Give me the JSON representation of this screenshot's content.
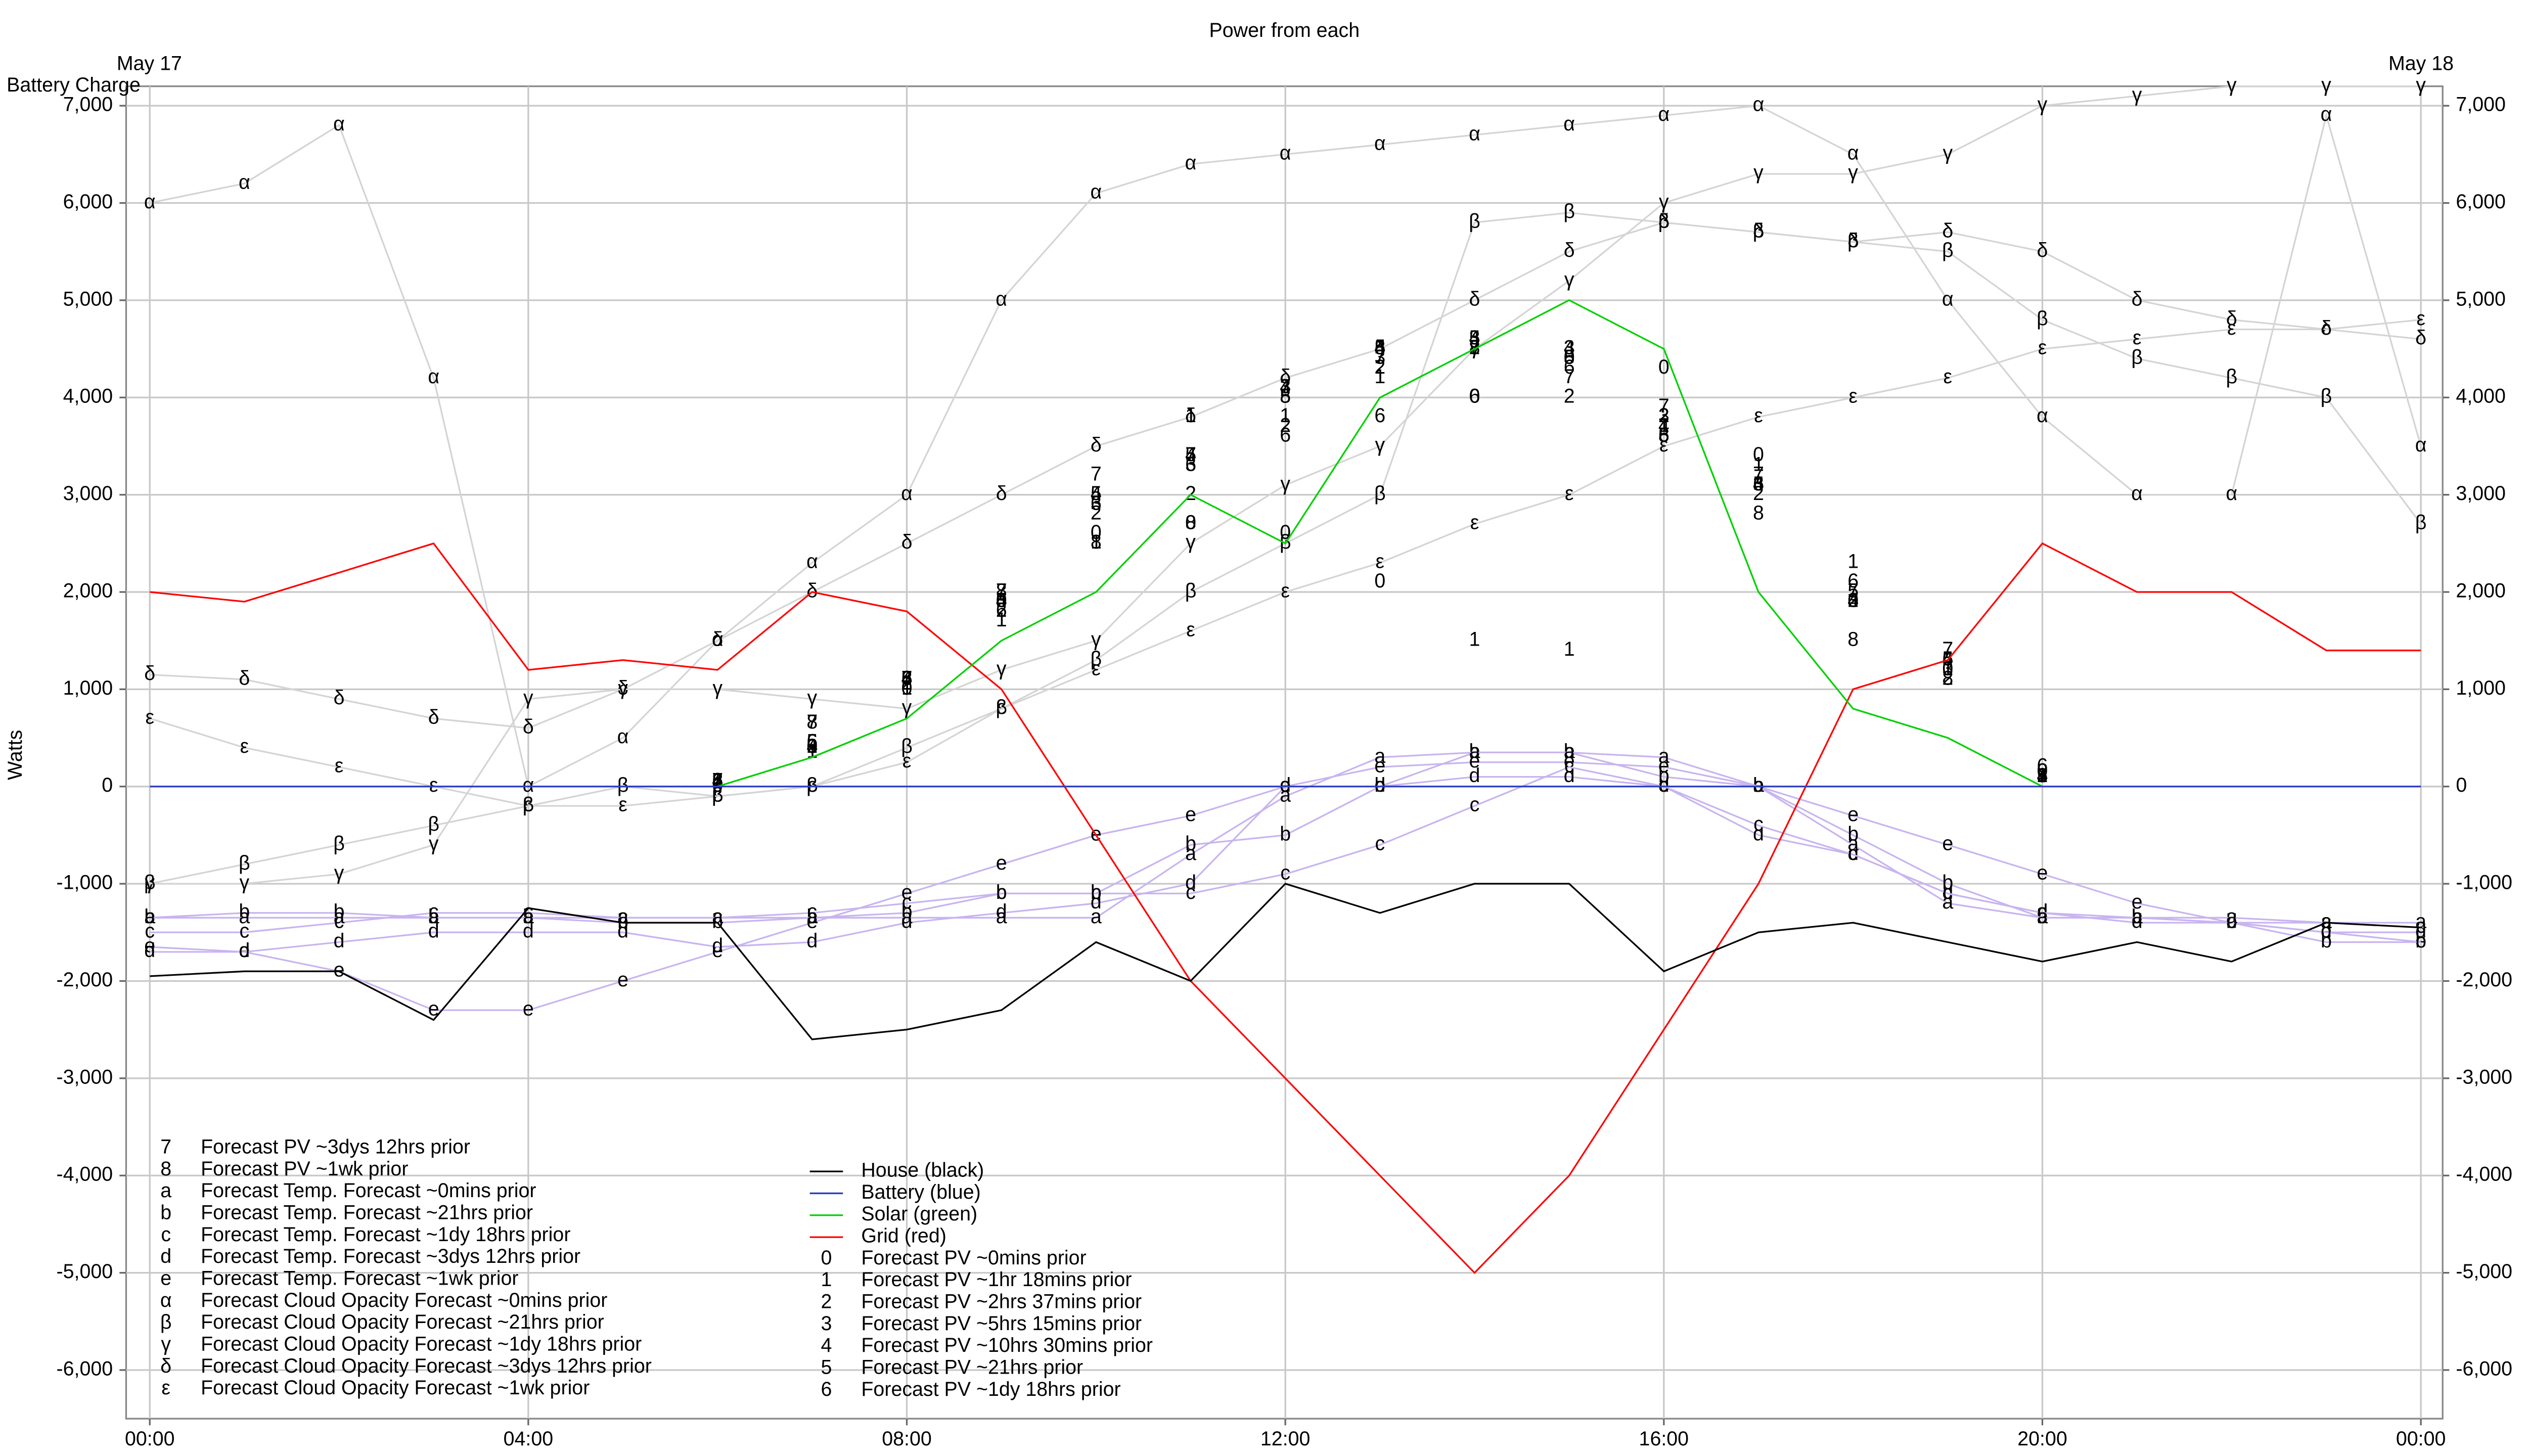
{
  "chart_data": {
    "type": "line",
    "title": "Power from each",
    "ylabel": "Watts",
    "y_top_label": "Battery Charge",
    "date_start": "May 17",
    "date_end": "May 18",
    "x": [
      0,
      1,
      2,
      3,
      4,
      5,
      6,
      7,
      8,
      9,
      10,
      11,
      12,
      13,
      14,
      15,
      16,
      17,
      18,
      19,
      20,
      21,
      22,
      23,
      24
    ],
    "xlim": [
      -0.25,
      24.23
    ],
    "xticks": [
      {
        "value": 0,
        "label": "00:00"
      },
      {
        "value": 4,
        "label": "04:00"
      },
      {
        "value": 8,
        "label": "08:00"
      },
      {
        "value": 12,
        "label": "12:00"
      },
      {
        "value": 16,
        "label": "16:00"
      },
      {
        "value": 20,
        "label": "20:00"
      },
      {
        "value": 24,
        "label": "00:00"
      }
    ],
    "ylim": [
      -6500,
      7200
    ],
    "yticks": [
      {
        "value": -6000,
        "label": "-6,000"
      },
      {
        "value": -5000,
        "label": "-5,000"
      },
      {
        "value": -4000,
        "label": "-4,000"
      },
      {
        "value": -3000,
        "label": "-3,000"
      },
      {
        "value": -2000,
        "label": "-2,000"
      },
      {
        "value": -1000,
        "label": "-1,000"
      },
      0,
      {
        "value": 1000,
        "label": "1,000"
      },
      {
        "value": 2000,
        "label": "2,000"
      },
      {
        "value": 3000,
        "label": "3,000"
      },
      {
        "value": 4000,
        "label": "4,000"
      },
      {
        "value": 5000,
        "label": "5,000"
      },
      {
        "value": 6000,
        "label": "6,000"
      },
      {
        "value": 7000,
        "label": "7,000"
      }
    ],
    "grid": true,
    "series": [
      {
        "name": "House (black)",
        "color": "#000000",
        "style": "line",
        "values": [
          -1950,
          -1900,
          -1900,
          -2400,
          -1250,
          -1400,
          -1400,
          -2600,
          -2500,
          -2300,
          -1600,
          -2000,
          -1000,
          -1300,
          -1000,
          -1000,
          -1900,
          -1500,
          -1400,
          -1600,
          -1800,
          -1600,
          -1800,
          -1400,
          -1450
        ]
      },
      {
        "name": "Battery (blue)",
        "color": "#3040c0",
        "style": "line",
        "values": [
          0,
          0,
          0,
          0,
          0,
          0,
          0,
          0,
          0,
          0,
          0,
          0,
          0,
          0,
          0,
          0,
          0,
          0,
          0,
          0,
          0,
          0,
          0,
          0,
          0
        ]
      },
      {
        "name": "Solar (green)",
        "color": "#00d000",
        "style": "line",
        "values": [
          0,
          0,
          0,
          0,
          0,
          0,
          0,
          300,
          700,
          1500,
          2000,
          3000,
          2500,
          4000,
          4500,
          5000,
          4500,
          2000,
          800,
          500,
          0,
          0,
          0,
          0,
          0
        ]
      },
      {
        "name": "Grid (red)",
        "color": "#ff0000",
        "style": "line",
        "values": [
          2000,
          1900,
          2200,
          2500,
          1200,
          1300,
          1200,
          2000,
          1800,
          1000,
          -500,
          -2000,
          -3000,
          -4000,
          -5000,
          -4000,
          -2500,
          -1000,
          1000,
          1300,
          2500,
          2000,
          2000,
          1400,
          1400
        ]
      },
      {
        "name": "Forecast PV ~0mins prior",
        "marker": "0",
        "color": "#000000",
        "style": "markers",
        "values": [
          null,
          null,
          null,
          null,
          null,
          null,
          0,
          400,
          1000,
          1900,
          2600,
          2700,
          2600,
          2100,
          4000,
          4400,
          4300,
          3400,
          1900,
          1200,
          150,
          null,
          null,
          null,
          null
        ]
      },
      {
        "name": "Forecast PV ~1hr 18mins prior",
        "marker": "1",
        "color": "#000000",
        "style": "markers",
        "values": [
          null,
          null,
          null,
          null,
          null,
          null,
          50,
          350,
          1000,
          1700,
          2500,
          3800,
          3800,
          4200,
          1500,
          1400,
          3700,
          3300,
          2300,
          1200,
          100,
          null,
          null,
          null,
          null
        ]
      },
      {
        "name": "Forecast PV ~2hrs 37mins prior",
        "marker": "2",
        "color": "#000000",
        "style": "markers",
        "values": [
          null,
          null,
          null,
          null,
          null,
          null,
          50,
          400,
          1050,
          1800,
          2800,
          3000,
          3700,
          4300,
          4500,
          4000,
          3800,
          3000,
          1900,
          1100,
          100,
          null,
          null,
          null,
          null
        ]
      },
      {
        "name": "Forecast PV ~5hrs 15mins prior",
        "marker": "3",
        "color": "#000000",
        "style": "markers",
        "values": [
          null,
          null,
          null,
          null,
          null,
          null,
          50,
          400,
          1100,
          1900,
          2900,
          3300,
          4100,
          4400,
          4600,
          4500,
          3800,
          3100,
          1900,
          1200,
          100,
          null,
          null,
          null,
          null
        ]
      },
      {
        "name": "Forecast PV ~10hrs 30mins prior",
        "marker": "4",
        "color": "#000000",
        "style": "markers",
        "values": [
          null,
          null,
          null,
          null,
          null,
          null,
          50,
          400,
          1100,
          1900,
          3000,
          3400,
          4100,
          4500,
          4600,
          4500,
          3700,
          3100,
          1900,
          1300,
          100,
          null,
          null,
          null,
          null
        ]
      },
      {
        "name": "Forecast PV ~21hrs prior",
        "marker": "5",
        "color": "#000000",
        "style": "markers",
        "values": [
          null,
          null,
          null,
          null,
          null,
          null,
          50,
          450,
          1100,
          1900,
          3000,
          3400,
          4000,
          4500,
          4600,
          4400,
          3600,
          3100,
          2000,
          1300,
          100,
          null,
          null,
          null,
          null
        ]
      },
      {
        "name": "Forecast PV ~1dy 18hrs prior",
        "marker": "6",
        "color": "#000000",
        "style": "markers",
        "values": [
          null,
          null,
          null,
          null,
          null,
          null,
          50,
          450,
          1100,
          1800,
          2900,
          3300,
          3600,
          3800,
          4000,
          4300,
          3600,
          3100,
          2100,
          1300,
          200,
          null,
          null,
          null,
          null
        ]
      },
      {
        "name": "Forecast PV ~3dys 12hrs prior",
        "marker": "7",
        "color": "#000000",
        "style": "markers",
        "values": [
          null,
          null,
          null,
          null,
          null,
          null,
          50,
          650,
          1100,
          2000,
          3200,
          3400,
          4100,
          4400,
          4500,
          4200,
          3900,
          3200,
          2000,
          1400,
          100,
          null,
          null,
          null,
          null
        ]
      },
      {
        "name": "Forecast PV ~1wk prior",
        "marker": "8",
        "color": "#000000",
        "style": "markers",
        "values": [
          null,
          null,
          null,
          null,
          null,
          null,
          50,
          650,
          1100,
          2000,
          2500,
          2700,
          4000,
          4500,
          4500,
          4400,
          3600,
          2800,
          1500,
          1100,
          100,
          null,
          null,
          null,
          null
        ]
      },
      {
        "name": "Forecast Temp. Forecast ~0mins prior",
        "marker": "a",
        "color": "#c8b4f0",
        "style": "line+markers",
        "values": [
          -1350,
          -1350,
          -1350,
          -1350,
          -1350,
          -1350,
          -1350,
          -1350,
          -1350,
          -1350,
          -1350,
          -700,
          -100,
          300,
          350,
          350,
          300,
          0,
          -600,
          -1200,
          -1350,
          -1350,
          -1350,
          -1400,
          -1400
        ]
      },
      {
        "name": "Forecast Temp. Forecast ~21hrs prior",
        "marker": "b",
        "color": "#c8b4f0",
        "style": "line+markers",
        "values": [
          -1350,
          -1300,
          -1300,
          -1350,
          -1350,
          -1400,
          -1400,
          -1350,
          -1300,
          -1100,
          -1100,
          -600,
          -500,
          0,
          350,
          350,
          100,
          0,
          -500,
          -1000,
          -1350,
          -1350,
          -1400,
          -1600,
          -1600
        ]
      },
      {
        "name": "Forecast Temp. Forecast ~1dy 18hrs prior",
        "marker": "c",
        "color": "#c8b4f0",
        "style": "line+markers",
        "values": [
          -1500,
          -1500,
          -1400,
          -1300,
          -1300,
          -1350,
          -1350,
          -1300,
          -1200,
          -1100,
          -1100,
          -1100,
          -900,
          -600,
          -200,
          200,
          0,
          -400,
          -700,
          -1100,
          -1300,
          -1350,
          -1400,
          -1400,
          -1450
        ]
      },
      {
        "name": "Forecast Temp. Forecast ~3dys 12hrs prior",
        "marker": "d",
        "color": "#c8b4f0",
        "style": "line+markers",
        "values": [
          -1700,
          -1700,
          -1600,
          -1500,
          -1500,
          -1500,
          -1650,
          -1600,
          -1400,
          -1300,
          -1200,
          -1000,
          0,
          0,
          100,
          100,
          0,
          -500,
          -700,
          -1100,
          -1300,
          -1400,
          -1400,
          -1500,
          -1500
        ]
      },
      {
        "name": "Forecast Temp. Forecast ~1wk prior",
        "marker": "e",
        "color": "#c8b4f0",
        "style": "line+markers",
        "values": [
          -1650,
          -1700,
          -1900,
          -2300,
          -2300,
          -2000,
          -1700,
          -1400,
          -1100,
          -800,
          -500,
          -300,
          0,
          200,
          250,
          250,
          200,
          0,
          -300,
          -600,
          -900,
          -1200,
          -1400,
          -1500,
          -1600
        ]
      },
      {
        "name": "Forecast Cloud Opacity Forecast ~0mins prior",
        "marker": "α",
        "color": "#d4d4d4",
        "style": "line+markers",
        "values": [
          6000,
          6200,
          6800,
          4200,
          0,
          500,
          1500,
          2300,
          3000,
          5000,
          6100,
          6400,
          6500,
          6600,
          6700,
          6800,
          6900,
          7000,
          6500,
          5000,
          3800,
          3000,
          3000,
          6900,
          3500
        ]
      },
      {
        "name": "Forecast Cloud Opacity Forecast ~21hrs prior",
        "marker": "β",
        "color": "#d4d4d4",
        "style": "line+markers",
        "values": [
          -1000,
          -800,
          -600,
          -400,
          -200,
          0,
          -100,
          0,
          400,
          800,
          1300,
          2000,
          2500,
          3000,
          5800,
          5900,
          5800,
          5700,
          5600,
          5500,
          4800,
          4400,
          4200,
          4000,
          2700
        ]
      },
      {
        "name": "Forecast Cloud Opacity Forecast ~1dy 18hrs prior",
        "marker": "γ",
        "color": "#d4d4d4",
        "style": "line+markers",
        "values": [
          -1000,
          -1000,
          -900,
          -600,
          900,
          1000,
          1000,
          900,
          800,
          1200,
          1500,
          2500,
          3100,
          3500,
          4500,
          5200,
          6000,
          6300,
          6300,
          6500,
          7000,
          7100,
          7200,
          7200,
          7200
        ]
      },
      {
        "name": "Forecast Cloud Opacity Forecast ~3dys 12hrs prior",
        "marker": "δ",
        "color": "#d4d4d4",
        "style": "line+markers",
        "values": [
          1150,
          1100,
          900,
          700,
          600,
          1000,
          1500,
          2000,
          2500,
          3000,
          3500,
          3800,
          4200,
          4500,
          5000,
          5500,
          5800,
          5700,
          5600,
          5700,
          5500,
          5000,
          4800,
          4700,
          4600
        ]
      },
      {
        "name": "Forecast Cloud Opacity Forecast ~1wk prior",
        "marker": "ε",
        "color": "#d4d4d4",
        "style": "line+markers",
        "values": [
          700,
          400,
          200,
          0,
          -200,
          -200,
          -100,
          0,
          250,
          800,
          1200,
          1600,
          2000,
          2300,
          2700,
          3000,
          3500,
          3800,
          4000,
          4200,
          4500,
          4600,
          4700,
          4700,
          4800
        ]
      }
    ]
  }
}
